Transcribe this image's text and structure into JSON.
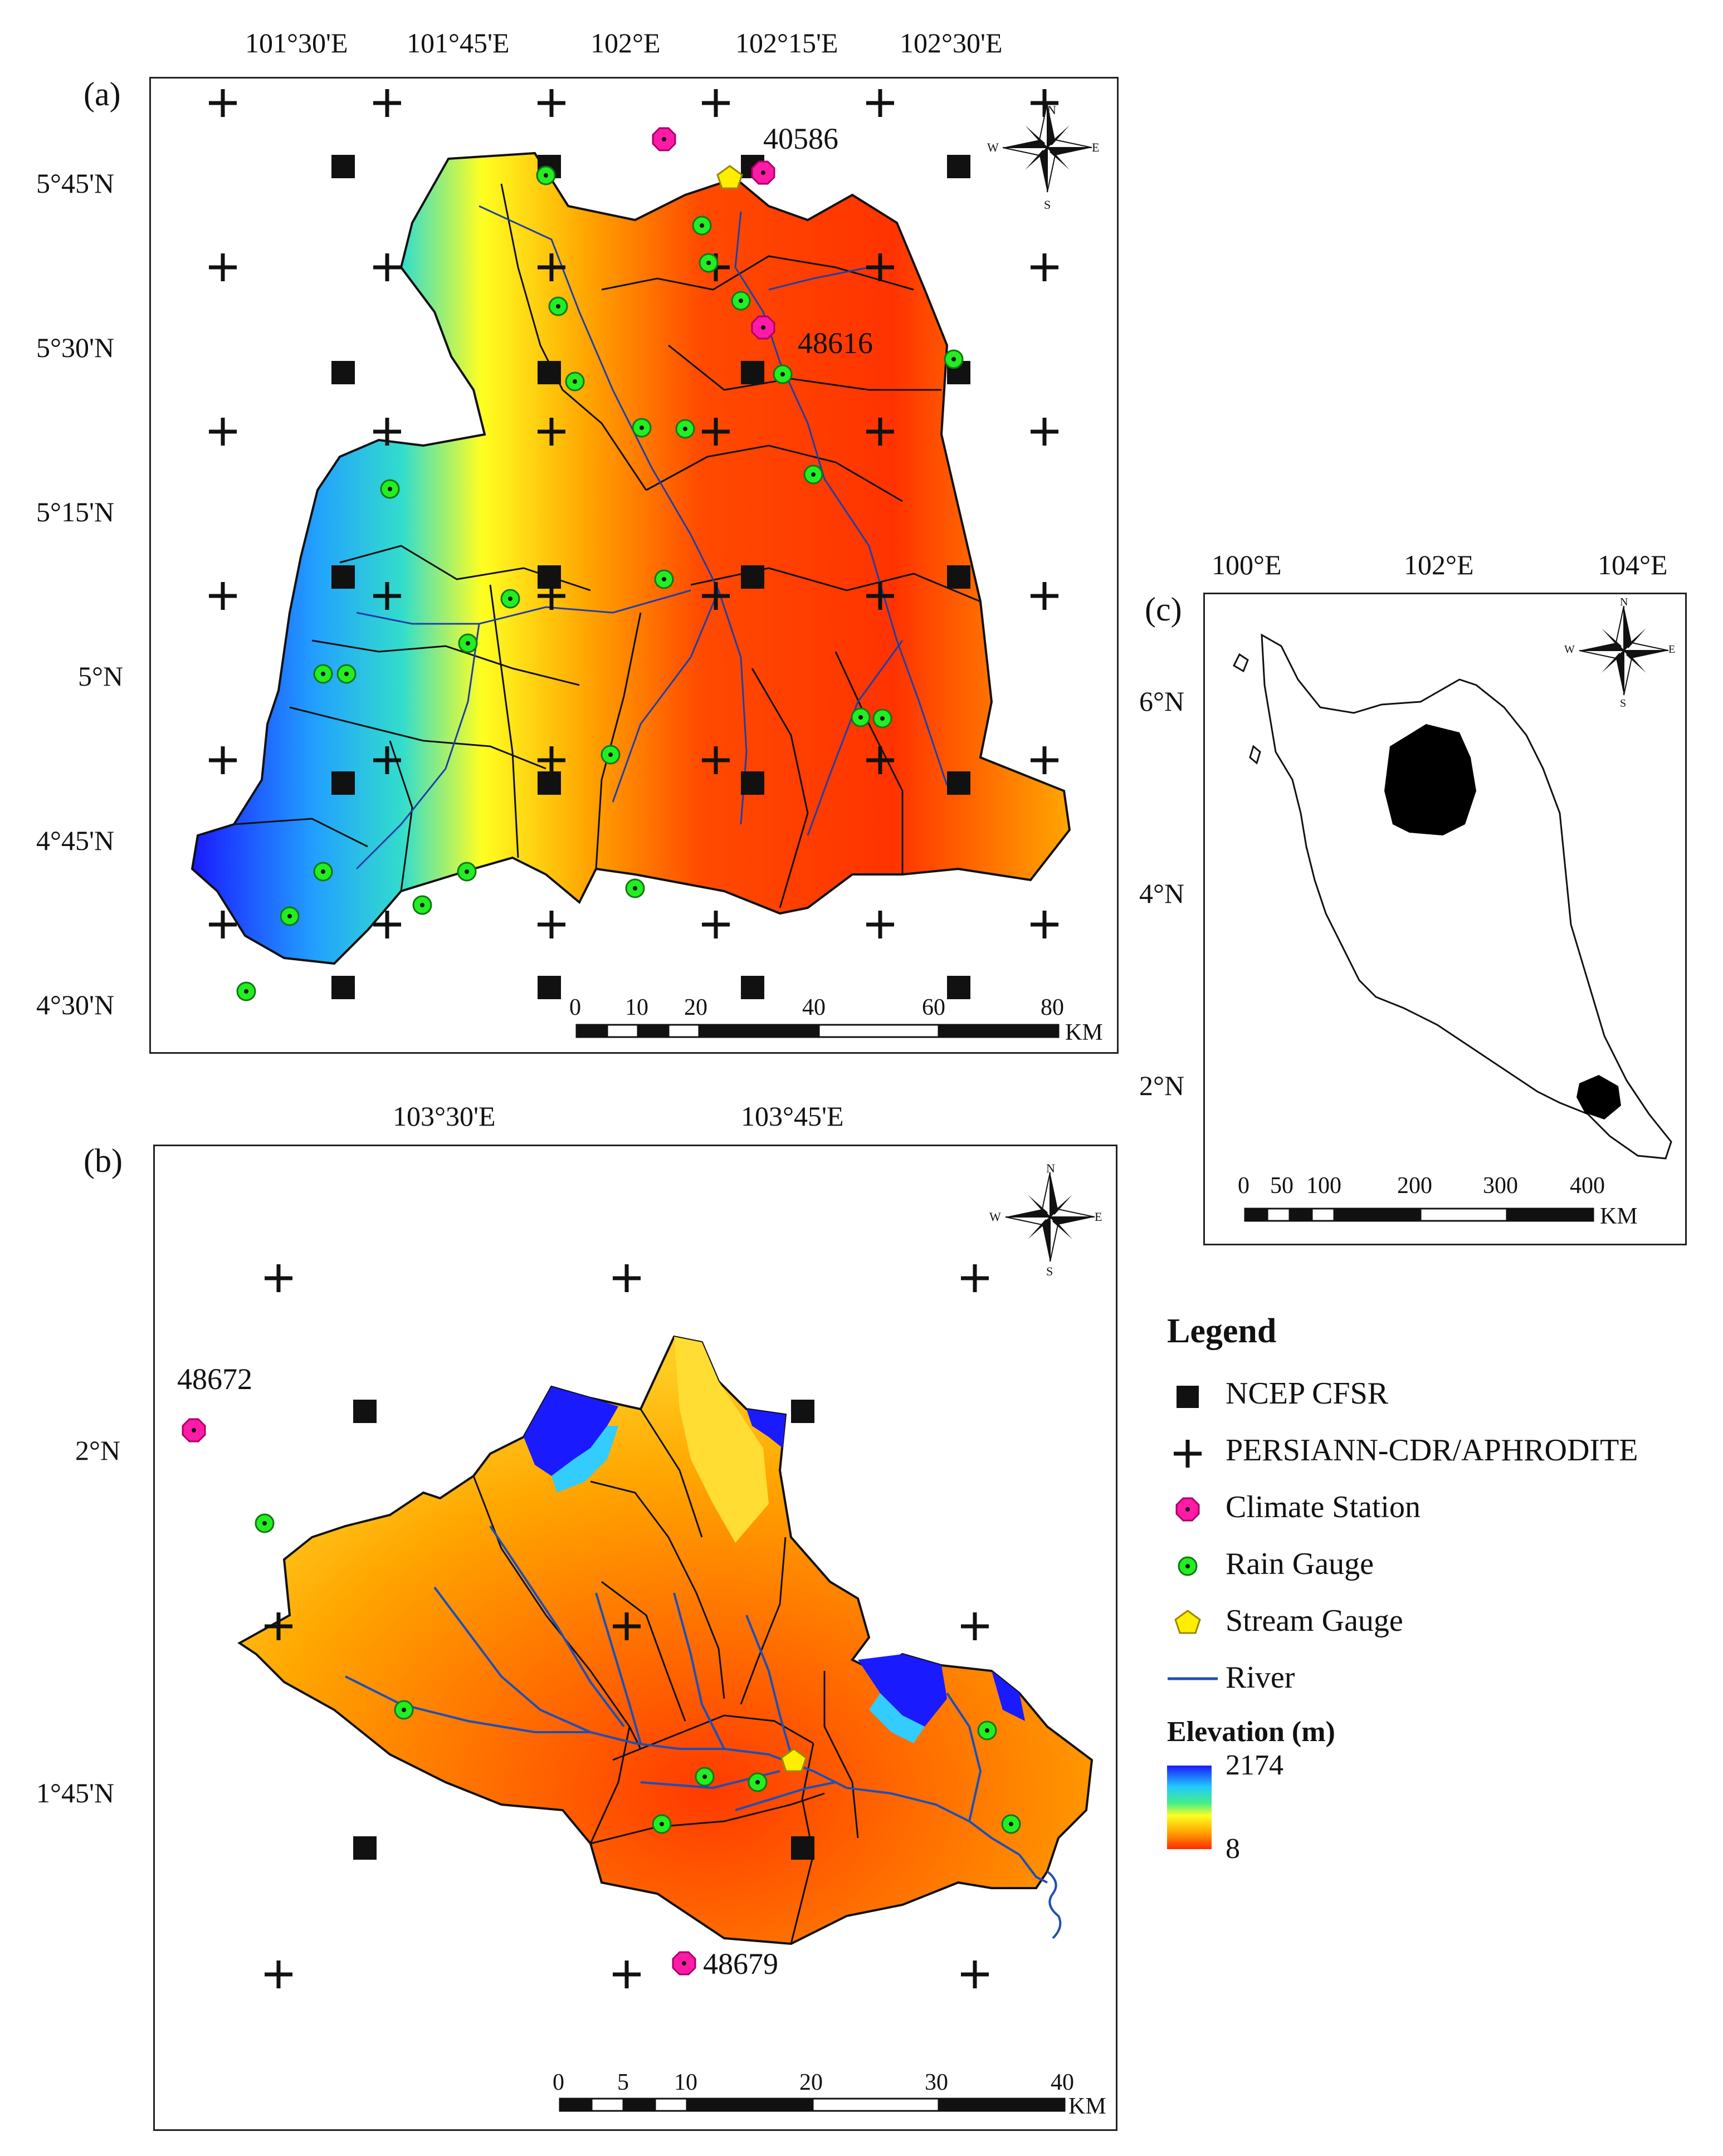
{
  "panels": {
    "a": {
      "label": "(a)",
      "top_ticks": [
        "101°30'E",
        "101°45'E",
        "102°E",
        "102°15'E",
        "102°30'E"
      ],
      "left_ticks": [
        "5°45'N",
        "5°30'N",
        "5°15'N",
        "5°N",
        "4°45'N",
        "4°30'N"
      ],
      "stations": [
        "40586",
        "48616"
      ],
      "scale_labels": [
        "0",
        "10",
        "20",
        "40",
        "60",
        "80"
      ],
      "scale_unit": "KM"
    },
    "b": {
      "label": "(b)",
      "top_ticks": [
        "103°30'E",
        "103°45'E"
      ],
      "left_ticks": [
        "2°N",
        "1°45'N"
      ],
      "stations": [
        "48672",
        "48679"
      ],
      "scale_labels": [
        "0",
        "5",
        "10",
        "20",
        "30",
        "40"
      ],
      "scale_unit": "KM"
    },
    "c": {
      "label": "(c)",
      "top_ticks": [
        "100°E",
        "102°E",
        "104°E"
      ],
      "left_ticks": [
        "6°N",
        "4°N",
        "2°N"
      ],
      "scale_labels": [
        "0",
        "50",
        "100",
        "200",
        "300",
        "400"
      ],
      "scale_unit": "KM"
    }
  },
  "compass": {
    "n": "N",
    "e": "E",
    "s": "S",
    "w": "W"
  },
  "legend": {
    "title": "Legend",
    "items": [
      {
        "label": "NCEP CFSR",
        "icon": "black-square-icon"
      },
      {
        "label": "PERSIANN-CDR/APHRODITE",
        "icon": "plus-icon"
      },
      {
        "label": "Climate Station",
        "icon": "magenta-octagon-icon"
      },
      {
        "label": "Rain Gauge",
        "icon": "green-dot-icon"
      },
      {
        "label": "Stream Gauge",
        "icon": "yellow-pentagon-icon"
      },
      {
        "label": "River",
        "icon": "river-line-icon"
      }
    ],
    "elevation": {
      "title": "Elevation (m)",
      "max": "2174",
      "min": "8"
    }
  },
  "colors": {
    "high": "#1a1aff",
    "mid": "#ffff00",
    "low": "#ff2a00",
    "rain_gauge": "#22ee22",
    "climate_station": "#ff1aa8",
    "stream_gauge": "#ffee00",
    "river": "#1f4fb5"
  }
}
